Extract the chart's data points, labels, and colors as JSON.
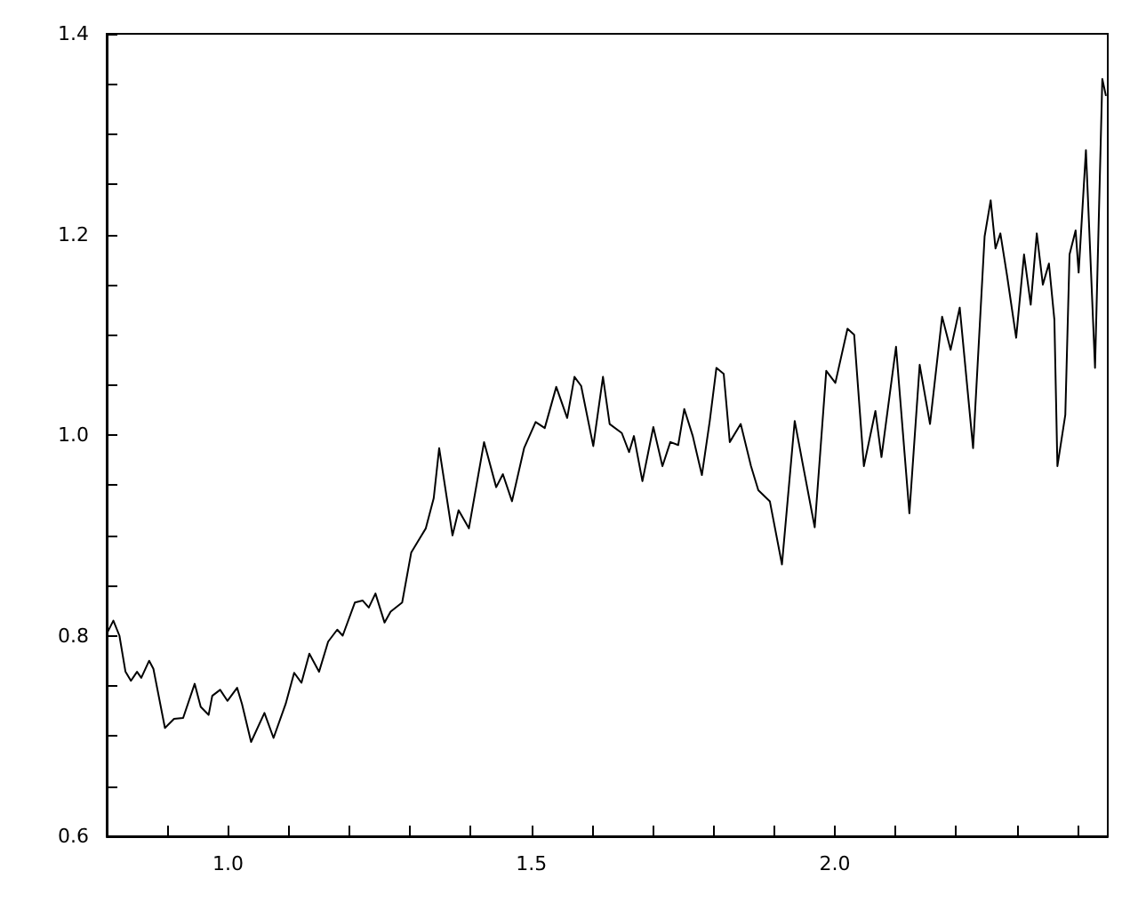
{
  "chart_data": {
    "type": "line",
    "color": "#000000",
    "marker": "none",
    "line_style": "solid",
    "xlim": [
      0.8,
      2.45
    ],
    "ylim": [
      0.6,
      1.4
    ],
    "xticks": [
      {
        "value": 0.9,
        "label": null
      },
      {
        "value": 1.0,
        "label": "1.0"
      },
      {
        "value": 1.1,
        "label": null
      },
      {
        "value": 1.2,
        "label": null
      },
      {
        "value": 1.3,
        "label": null
      },
      {
        "value": 1.4,
        "label": null
      },
      {
        "value": 1.5,
        "label": "1.5"
      },
      {
        "value": 1.6,
        "label": null
      },
      {
        "value": 1.7,
        "label": null
      },
      {
        "value": 1.8,
        "label": null
      },
      {
        "value": 1.9,
        "label": null
      },
      {
        "value": 2.0,
        "label": "2.0"
      },
      {
        "value": 2.1,
        "label": null
      },
      {
        "value": 2.2,
        "label": null
      },
      {
        "value": 2.3,
        "label": null
      },
      {
        "value": 2.4,
        "label": null
      }
    ],
    "yticks": [
      {
        "value": 0.6,
        "label": "0.6"
      },
      {
        "value": 0.65,
        "label": null
      },
      {
        "value": 0.7,
        "label": null
      },
      {
        "value": 0.75,
        "label": null
      },
      {
        "value": 0.8,
        "label": "0.8"
      },
      {
        "value": 0.85,
        "label": null
      },
      {
        "value": 0.9,
        "label": null
      },
      {
        "value": 0.95,
        "label": null
      },
      {
        "value": 1.0,
        "label": "1.0"
      },
      {
        "value": 1.05,
        "label": null
      },
      {
        "value": 1.1,
        "label": null
      },
      {
        "value": 1.15,
        "label": null
      },
      {
        "value": 1.2,
        "label": "1.2"
      },
      {
        "value": 1.25,
        "label": null
      },
      {
        "value": 1.3,
        "label": null
      },
      {
        "value": 1.35,
        "label": null
      },
      {
        "value": 1.4,
        "label": "1.4"
      }
    ],
    "x": [
      0.801,
      0.811,
      0.821,
      0.831,
      0.84,
      0.85,
      0.857,
      0.87,
      0.877,
      0.896,
      0.911,
      0.926,
      0.945,
      0.955,
      0.968,
      0.974,
      0.987,
      0.999,
      1.015,
      1.023,
      1.038,
      1.06,
      1.075,
      1.095,
      1.109,
      1.121,
      1.134,
      1.15,
      1.165,
      1.18,
      1.189,
      1.209,
      1.222,
      1.232,
      1.243,
      1.258,
      1.268,
      1.287,
      1.302,
      1.317,
      1.326,
      1.339,
      1.348,
      1.37,
      1.38,
      1.397,
      1.422,
      1.442,
      1.453,
      1.468,
      1.488,
      1.507,
      1.522,
      1.541,
      1.559,
      1.571,
      1.582,
      1.602,
      1.618,
      1.629,
      1.649,
      1.661,
      1.669,
      1.683,
      1.701,
      1.716,
      1.729,
      1.742,
      1.752,
      1.766,
      1.781,
      1.794,
      1.805,
      1.817,
      1.827,
      1.845,
      1.862,
      1.874,
      1.893,
      1.913,
      1.934,
      1.947,
      1.967,
      1.986,
      2.001,
      2.021,
      2.032,
      2.048,
      2.067,
      2.077,
      2.101,
      2.123,
      2.14,
      2.157,
      2.177,
      2.191,
      2.206,
      2.228,
      2.247,
      2.257,
      2.265,
      2.273,
      2.284,
      2.299,
      2.312,
      2.323,
      2.333,
      2.343,
      2.353,
      2.362,
      2.367,
      2.38,
      2.387,
      2.397,
      2.402,
      2.414,
      2.429,
      2.441,
      2.447
    ],
    "values": [
      0.803,
      0.815,
      0.8,
      0.764,
      0.755,
      0.764,
      0.758,
      0.775,
      0.767,
      0.708,
      0.717,
      0.718,
      0.752,
      0.729,
      0.721,
      0.74,
      0.746,
      0.735,
      0.748,
      0.732,
      0.694,
      0.723,
      0.698,
      0.732,
      0.763,
      0.753,
      0.782,
      0.764,
      0.794,
      0.806,
      0.8,
      0.833,
      0.835,
      0.828,
      0.842,
      0.813,
      0.824,
      0.833,
      0.883,
      0.898,
      0.907,
      0.937,
      0.987,
      0.9,
      0.925,
      0.907,
      0.993,
      0.948,
      0.961,
      0.934,
      0.987,
      1.013,
      1.007,
      1.048,
      1.017,
      1.058,
      1.049,
      0.989,
      1.058,
      1.011,
      1.002,
      0.983,
      0.999,
      0.954,
      1.008,
      0.969,
      0.993,
      0.99,
      1.026,
      0.999,
      0.96,
      1.014,
      1.067,
      1.061,
      0.993,
      1.011,
      0.969,
      0.945,
      0.934,
      0.871,
      1.014,
      0.972,
      0.908,
      1.064,
      1.052,
      1.106,
      1.1,
      0.969,
      1.024,
      0.978,
      1.088,
      0.922,
      1.07,
      1.011,
      1.118,
      1.085,
      1.127,
      0.987,
      1.198,
      1.234,
      1.186,
      1.201,
      1.159,
      1.097,
      1.18,
      1.13,
      1.201,
      1.15,
      1.171,
      1.115,
      0.969,
      1.02,
      1.18,
      1.204,
      1.162,
      1.284,
      1.067,
      1.355,
      1.338
    ]
  }
}
